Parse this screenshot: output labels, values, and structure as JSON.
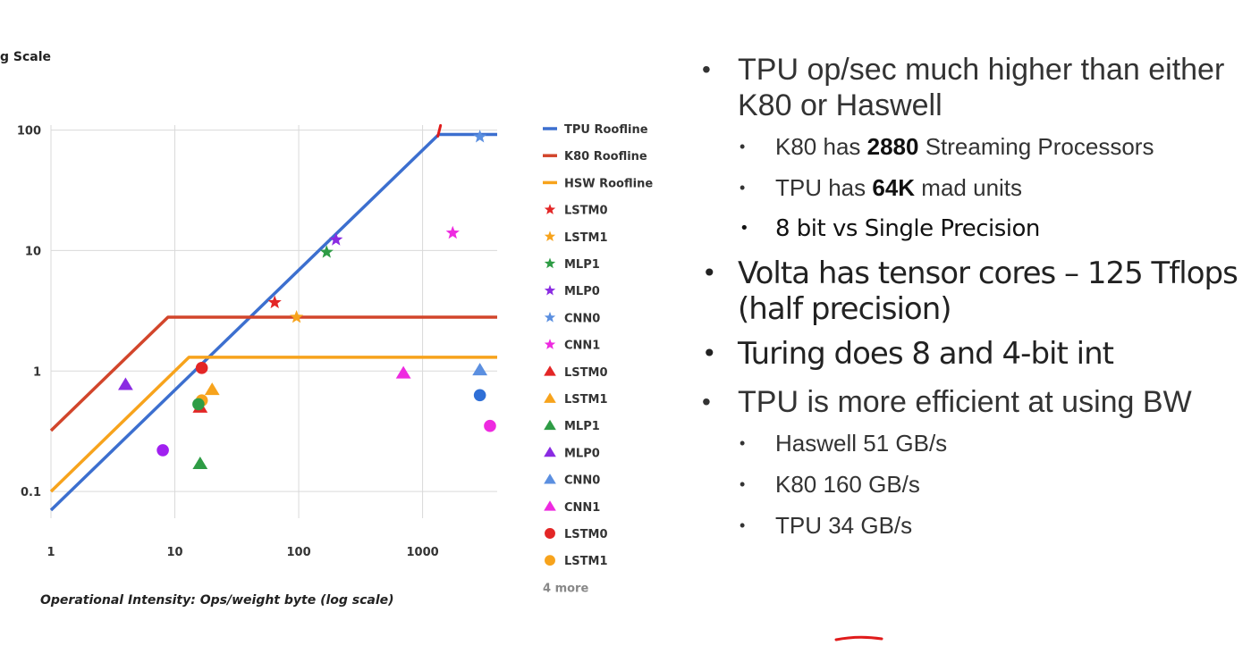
{
  "chart_data": {
    "type": "scatter",
    "title": "g Scale",
    "xlabel": "Operational Intensity: Ops/weight byte (log scale)",
    "ylabel": "",
    "x_scale": "log",
    "y_scale": "log",
    "xlim": [
      1,
      4000
    ],
    "ylim": [
      0.06,
      110
    ],
    "grid": true,
    "legend_position": "right",
    "x_ticks": [
      "1",
      "10",
      "100",
      "1000"
    ],
    "y_ticks": [
      "0.1",
      "1",
      "10",
      "100"
    ],
    "rooflines": [
      {
        "name": "TPU Roofline",
        "color": "#3c6fcf",
        "points": [
          [
            1,
            0.07
          ],
          [
            1350,
            92
          ],
          [
            4000,
            92
          ]
        ]
      },
      {
        "name": "K80 Roofline",
        "color": "#d2452b",
        "points": [
          [
            1,
            0.32
          ],
          [
            8.8,
            2.8
          ],
          [
            4000,
            2.8
          ]
        ]
      },
      {
        "name": "HSW Roofline",
        "color": "#f7a31c",
        "points": [
          [
            1,
            0.1
          ],
          [
            13,
            1.3
          ],
          [
            4000,
            1.3
          ]
        ]
      }
    ],
    "series": [
      {
        "name": "LSTM0",
        "shape": "star",
        "color": "#e32626",
        "points": [
          [
            64,
            3.7
          ]
        ]
      },
      {
        "name": "LSTM1",
        "shape": "star",
        "color": "#f7a31c",
        "points": [
          [
            96,
            2.8
          ]
        ]
      },
      {
        "name": "MLP1",
        "shape": "star",
        "color": "#2e9c45",
        "points": [
          [
            168,
            9.7
          ]
        ]
      },
      {
        "name": "MLP0",
        "shape": "star",
        "color": "#8a2be2",
        "points": [
          [
            200,
            12.3
          ]
        ]
      },
      {
        "name": "CNN0",
        "shape": "star",
        "color": "#5b8fe0",
        "points": [
          [
            2900,
            88
          ]
        ]
      },
      {
        "name": "CNN1",
        "shape": "star",
        "color": "#ee2ae0",
        "points": [
          [
            1750,
            14
          ]
        ]
      },
      {
        "name": "LSTM0",
        "shape": "triangle",
        "color": "#e32626",
        "points": [
          [
            16,
            0.5
          ]
        ]
      },
      {
        "name": "LSTM1",
        "shape": "triangle",
        "color": "#f7a31c",
        "points": [
          [
            20,
            0.7
          ]
        ]
      },
      {
        "name": "MLP1",
        "shape": "triangle",
        "color": "#2e9c45",
        "points": [
          [
            16,
            0.17
          ]
        ]
      },
      {
        "name": "MLP0",
        "shape": "triangle",
        "color": "#8a2be2",
        "points": [
          [
            4,
            0.77
          ]
        ]
      },
      {
        "name": "CNN0",
        "shape": "triangle",
        "color": "#5b8fe0",
        "points": [
          [
            2900,
            1.02
          ]
        ]
      },
      {
        "name": "CNN1",
        "shape": "triangle",
        "color": "#ee2ae0",
        "points": [
          [
            700,
            0.96
          ]
        ]
      },
      {
        "name": "LSTM0",
        "shape": "circle",
        "color": "#e32626",
        "points": [
          [
            16.5,
            1.06
          ]
        ]
      },
      {
        "name": "LSTM1",
        "shape": "circle",
        "color": "#f7a31c",
        "points": [
          [
            16.5,
            0.57
          ]
        ]
      },
      {
        "name": "MLP1",
        "shape": "circle",
        "color": "#2e9c45",
        "points": [
          [
            15.5,
            0.53
          ]
        ]
      },
      {
        "name": "MLP0",
        "shape": "circle",
        "color": "#a020f0",
        "points": [
          [
            8,
            0.22
          ]
        ]
      },
      {
        "name": "CNN0",
        "shape": "circle",
        "color": "#2f6fd6",
        "points": [
          [
            2900,
            0.63
          ]
        ]
      },
      {
        "name": "CNN1",
        "shape": "circle",
        "color": "#ee2ae0",
        "points": [
          [
            3500,
            0.35
          ]
        ]
      }
    ],
    "legend": [
      {
        "label": "TPU Roofline",
        "shape": "line",
        "color": "#3c6fcf"
      },
      {
        "label": "K80 Roofline",
        "shape": "line",
        "color": "#d2452b"
      },
      {
        "label": "HSW Roofline",
        "shape": "line",
        "color": "#f7a31c"
      },
      {
        "label": "LSTM0",
        "shape": "star",
        "color": "#e32626"
      },
      {
        "label": "LSTM1",
        "shape": "star",
        "color": "#f7a31c"
      },
      {
        "label": "MLP1",
        "shape": "star",
        "color": "#2e9c45"
      },
      {
        "label": "MLP0",
        "shape": "star",
        "color": "#8a2be2"
      },
      {
        "label": "CNN0",
        "shape": "star",
        "color": "#5b8fe0"
      },
      {
        "label": "CNN1",
        "shape": "star",
        "color": "#ee2ae0"
      },
      {
        "label": "LSTM0",
        "shape": "triangle",
        "color": "#e32626"
      },
      {
        "label": "LSTM1",
        "shape": "triangle",
        "color": "#f7a31c"
      },
      {
        "label": "MLP1",
        "shape": "triangle",
        "color": "#2e9c45"
      },
      {
        "label": "MLP0",
        "shape": "triangle",
        "color": "#8a2be2"
      },
      {
        "label": "CNN0",
        "shape": "triangle",
        "color": "#5b8fe0"
      },
      {
        "label": "CNN1",
        "shape": "triangle",
        "color": "#ee2ae0"
      },
      {
        "label": "LSTM0",
        "shape": "circle",
        "color": "#e32626"
      },
      {
        "label": "LSTM1",
        "shape": "circle",
        "color": "#f7a31c"
      }
    ],
    "legend_more": "4 more"
  },
  "bullets": {
    "b1": "TPU op/sec much higher than either K80 or Haswell",
    "b1_1_pre": "K80 has ",
    "b1_1_bold": "2880",
    "b1_1_post": " Streaming Processors",
    "b1_2_pre": "TPU has ",
    "b1_2_bold": "64K",
    "b1_2_post": " mad units",
    "b1_3": "8 bit vs Single Precision",
    "b2": "Volta has tensor cores – 125 Tflops (half precision)",
    "b3": "Turing does 8 and 4-bit int",
    "b4": "TPU is more efficient at using BW",
    "b4_1": "Haswell 51 GB/s",
    "b4_2": "K80 160 GB/s",
    "b4_3": "TPU 34 GB/s"
  },
  "bullet_symbol": "•",
  "colors": {
    "annotation": "#e01b1b"
  }
}
